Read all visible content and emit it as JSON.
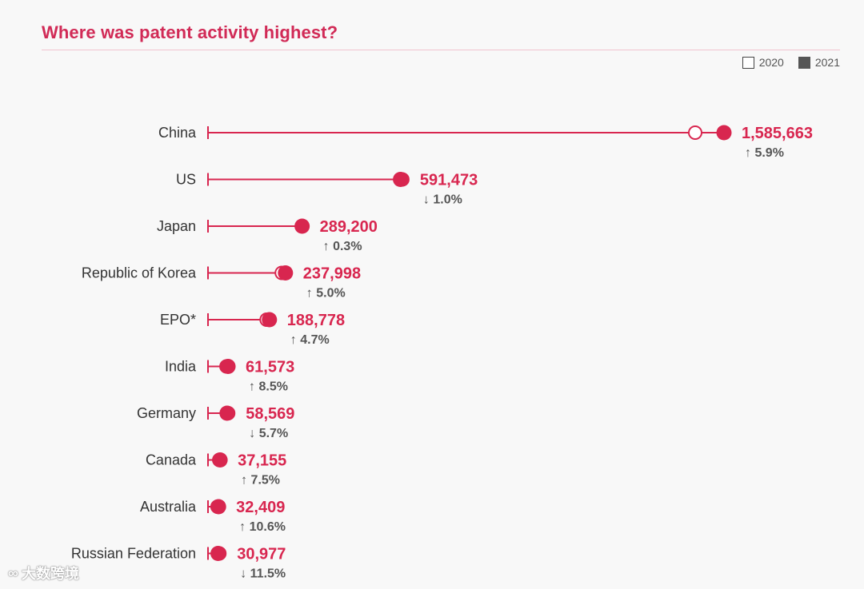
{
  "chart_data": {
    "type": "dumbbell",
    "title": "Where was patent activity highest?",
    "legend": [
      {
        "label": "2020",
        "style": "hollow"
      },
      {
        "label": "2021",
        "style": "filled"
      }
    ],
    "series": [
      {
        "name": "2020",
        "values": [
          1497159,
          597172,
          288472,
          226759,
          180250,
          56771,
          62105,
          34565,
          29294,
          34984
        ]
      },
      {
        "name": "2021",
        "values": [
          1585663,
          591473,
          289200,
          237998,
          188778,
          61573,
          58569,
          37155,
          32409,
          30977
        ]
      }
    ],
    "rows": [
      {
        "label": "China",
        "value_text": "1,585,663",
        "change": "5.9%",
        "direction": "up"
      },
      {
        "label": "US",
        "value_text": "591,473",
        "change": "1.0%",
        "direction": "down"
      },
      {
        "label": "Japan",
        "value_text": "289,200",
        "change": "0.3%",
        "direction": "up"
      },
      {
        "label": "Republic of Korea",
        "value_text": "237,998",
        "change": "5.0%",
        "direction": "up"
      },
      {
        "label": "EPO*",
        "value_text": "188,778",
        "change": "4.7%",
        "direction": "up"
      },
      {
        "label": "India",
        "value_text": "61,573",
        "change": "8.5%",
        "direction": "up"
      },
      {
        "label": "Germany",
        "value_text": "58,569",
        "change": "5.7%",
        "direction": "down"
      },
      {
        "label": "Canada",
        "value_text": "37,155",
        "change": "7.5%",
        "direction": "up"
      },
      {
        "label": "Australia",
        "value_text": "32,409",
        "change": "10.6%",
        "direction": "up"
      },
      {
        "label": "Russian Federation",
        "value_text": "30,977",
        "change": "11.5%",
        "direction": "down"
      }
    ],
    "xlim": [
      0,
      1585663
    ],
    "colors": {
      "accent": "#d8264f",
      "label": "#333333",
      "change": "#555555"
    }
  },
  "watermark": "大数跨境"
}
